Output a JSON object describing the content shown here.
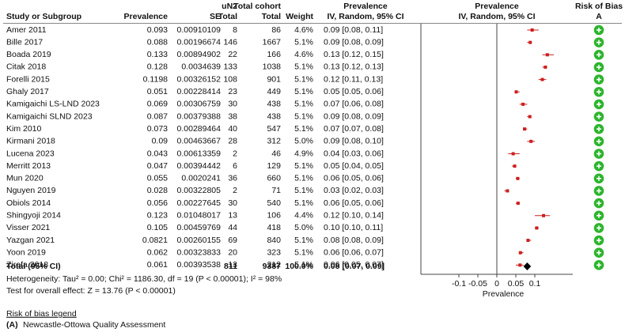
{
  "chart_data": {
    "type": "forest",
    "headers": {
      "study": "Study or Subgroup",
      "prevalence": "Prevalence",
      "se": "SE",
      "events_group": "uN2",
      "events": "Total",
      "total_group": "Total cohort",
      "total": "Total",
      "weight": "Weight",
      "ci_group": "Prevalence",
      "ci": "IV, Random, 95% CI",
      "plot_group": "Prevalence",
      "plot": "IV, Random, 95% CI",
      "bias": "Risk of Bias",
      "bias_domain": "A"
    },
    "rows": [
      {
        "study": "Amer 2011",
        "prevalence": 0.093,
        "se": 0.00910109,
        "events": 8,
        "total": 86,
        "weight": "4.6%",
        "ci_label": "0.09 [0.08, 0.11]",
        "ci": [
          0.08,
          0.11
        ]
      },
      {
        "study": "Bille 2017",
        "prevalence": 0.088,
        "se": 0.00196674,
        "events": 146,
        "total": 1667,
        "weight": "5.1%",
        "ci_label": "0.09 [0.08, 0.09]",
        "ci": [
          0.08,
          0.09
        ]
      },
      {
        "study": "Boada 2019",
        "prevalence": 0.133,
        "se": 0.00894902,
        "events": 22,
        "total": 166,
        "weight": "4.6%",
        "ci_label": "0.13 [0.12, 0.15]",
        "ci": [
          0.12,
          0.15
        ]
      },
      {
        "study": "Citak 2018",
        "prevalence": 0.128,
        "se": 0.0034639,
        "events": 133,
        "total": 1038,
        "weight": "5.1%",
        "ci_label": "0.13 [0.12, 0.13]",
        "ci": [
          0.12,
          0.13
        ]
      },
      {
        "study": "Forelli 2015",
        "prevalence": 0.1198,
        "se": 0.00326152,
        "events": 108,
        "total": 901,
        "weight": "5.1%",
        "ci_label": "0.12 [0.11, 0.13]",
        "ci": [
          0.11,
          0.13
        ]
      },
      {
        "study": "Ghaly 2017",
        "prevalence": 0.051,
        "se": 0.00228414,
        "events": 23,
        "total": 449,
        "weight": "5.1%",
        "ci_label": "0.05 [0.05, 0.06]",
        "ci": [
          0.05,
          0.06
        ]
      },
      {
        "study": "Kamigaichi LS-LND 2023",
        "prevalence": 0.069,
        "se": 0.00306759,
        "events": 30,
        "total": 438,
        "weight": "5.1%",
        "ci_label": "0.07 [0.06, 0.08]",
        "ci": [
          0.06,
          0.08
        ]
      },
      {
        "study": "Kamigaichi SLND 2023",
        "prevalence": 0.087,
        "se": 0.00379388,
        "events": 38,
        "total": 438,
        "weight": "5.1%",
        "ci_label": "0.09 [0.08, 0.09]",
        "ci": [
          0.08,
          0.09
        ]
      },
      {
        "study": "Kim 2010",
        "prevalence": 0.073,
        "se": 0.00289464,
        "events": 40,
        "total": 547,
        "weight": "5.1%",
        "ci_label": "0.07 [0.07, 0.08]",
        "ci": [
          0.07,
          0.08
        ]
      },
      {
        "study": "Kirmani 2018",
        "prevalence": 0.09,
        "se": 0.00463667,
        "events": 28,
        "total": 312,
        "weight": "5.0%",
        "ci_label": "0.09 [0.08, 0.10]",
        "ci": [
          0.08,
          0.1
        ]
      },
      {
        "study": "Lucena 2023",
        "prevalence": 0.043,
        "se": 0.00613359,
        "events": 2,
        "total": 46,
        "weight": "4.9%",
        "ci_label": "0.04 [0.03, 0.06]",
        "ci": [
          0.03,
          0.06
        ]
      },
      {
        "study": "Merritt 2013",
        "prevalence": 0.047,
        "se": 0.00394442,
        "events": 6,
        "total": 129,
        "weight": "5.1%",
        "ci_label": "0.05 [0.04, 0.05]",
        "ci": [
          0.04,
          0.05
        ]
      },
      {
        "study": "Mun 2020",
        "prevalence": 0.055,
        "se": 0.0020241,
        "events": 36,
        "total": 660,
        "weight": "5.1%",
        "ci_label": "0.06 [0.05, 0.06]",
        "ci": [
          0.05,
          0.06
        ]
      },
      {
        "study": "Nguyen 2019",
        "prevalence": 0.028,
        "se": 0.00322805,
        "events": 2,
        "total": 71,
        "weight": "5.1%",
        "ci_label": "0.03 [0.02, 0.03]",
        "ci": [
          0.02,
          0.03
        ]
      },
      {
        "study": "Obiols 2014",
        "prevalence": 0.056,
        "se": 0.00227645,
        "events": 30,
        "total": 540,
        "weight": "5.1%",
        "ci_label": "0.06 [0.05, 0.06]",
        "ci": [
          0.05,
          0.06
        ]
      },
      {
        "study": "Shingyoji 2014",
        "prevalence": 0.123,
        "se": 0.01048017,
        "events": 13,
        "total": 106,
        "weight": "4.4%",
        "ci_label": "0.12 [0.10, 0.14]",
        "ci": [
          0.1,
          0.14
        ]
      },
      {
        "study": "Visser 2021",
        "prevalence": 0.105,
        "se": 0.00459769,
        "events": 44,
        "total": 418,
        "weight": "5.0%",
        "ci_label": "0.10 [0.10, 0.11]",
        "ci": [
          0.1,
          0.11
        ]
      },
      {
        "study": "Yazgan 2021",
        "prevalence": 0.0821,
        "se": 0.00260155,
        "events": 69,
        "total": 840,
        "weight": "5.1%",
        "ci_label": "0.08 [0.08, 0.09]",
        "ci": [
          0.08,
          0.09
        ]
      },
      {
        "study": "Yoon 2019",
        "prevalence": 0.062,
        "se": 0.00323833,
        "events": 20,
        "total": 323,
        "weight": "5.1%",
        "ci_label": "0.06 [0.06, 0.07]",
        "ci": [
          0.06,
          0.07
        ]
      },
      {
        "study": "Zirafa 2018",
        "prevalence": 0.061,
        "se": 0.00393538,
        "events": 13,
        "total": 212,
        "weight": "5.1%",
        "ci_label": "0.06 [0.05, 0.07]",
        "ci": [
          0.05,
          0.07
        ]
      }
    ],
    "total_row": {
      "label": "Total (95% CI)",
      "events": 811,
      "total": 9387,
      "weight": "100.0%",
      "ci_label": "0.08 [0.07, 0.09]",
      "estimate": 0.08,
      "ci": [
        0.07,
        0.09
      ]
    },
    "heterogeneity": "Heterogeneity: Tau² = 0.00; Chi² = 1186.30, df = 19 (P < 0.00001); I² = 98%",
    "overall_test": "Test for overall effect: Z = 13.76 (P < 0.00001)",
    "xlabel": "Prevalence",
    "xlim": [
      -0.2,
      0.2
    ],
    "xticks": [
      -0.1,
      -0.05,
      0,
      0.05,
      0.1
    ],
    "color": "#cc1f1f",
    "bias_color": "#2db52d",
    "legend_title": "Risk of bias legend",
    "legend_key": "(A)",
    "legend_text": "Newcastle-Ottowa Quality Assessment"
  }
}
